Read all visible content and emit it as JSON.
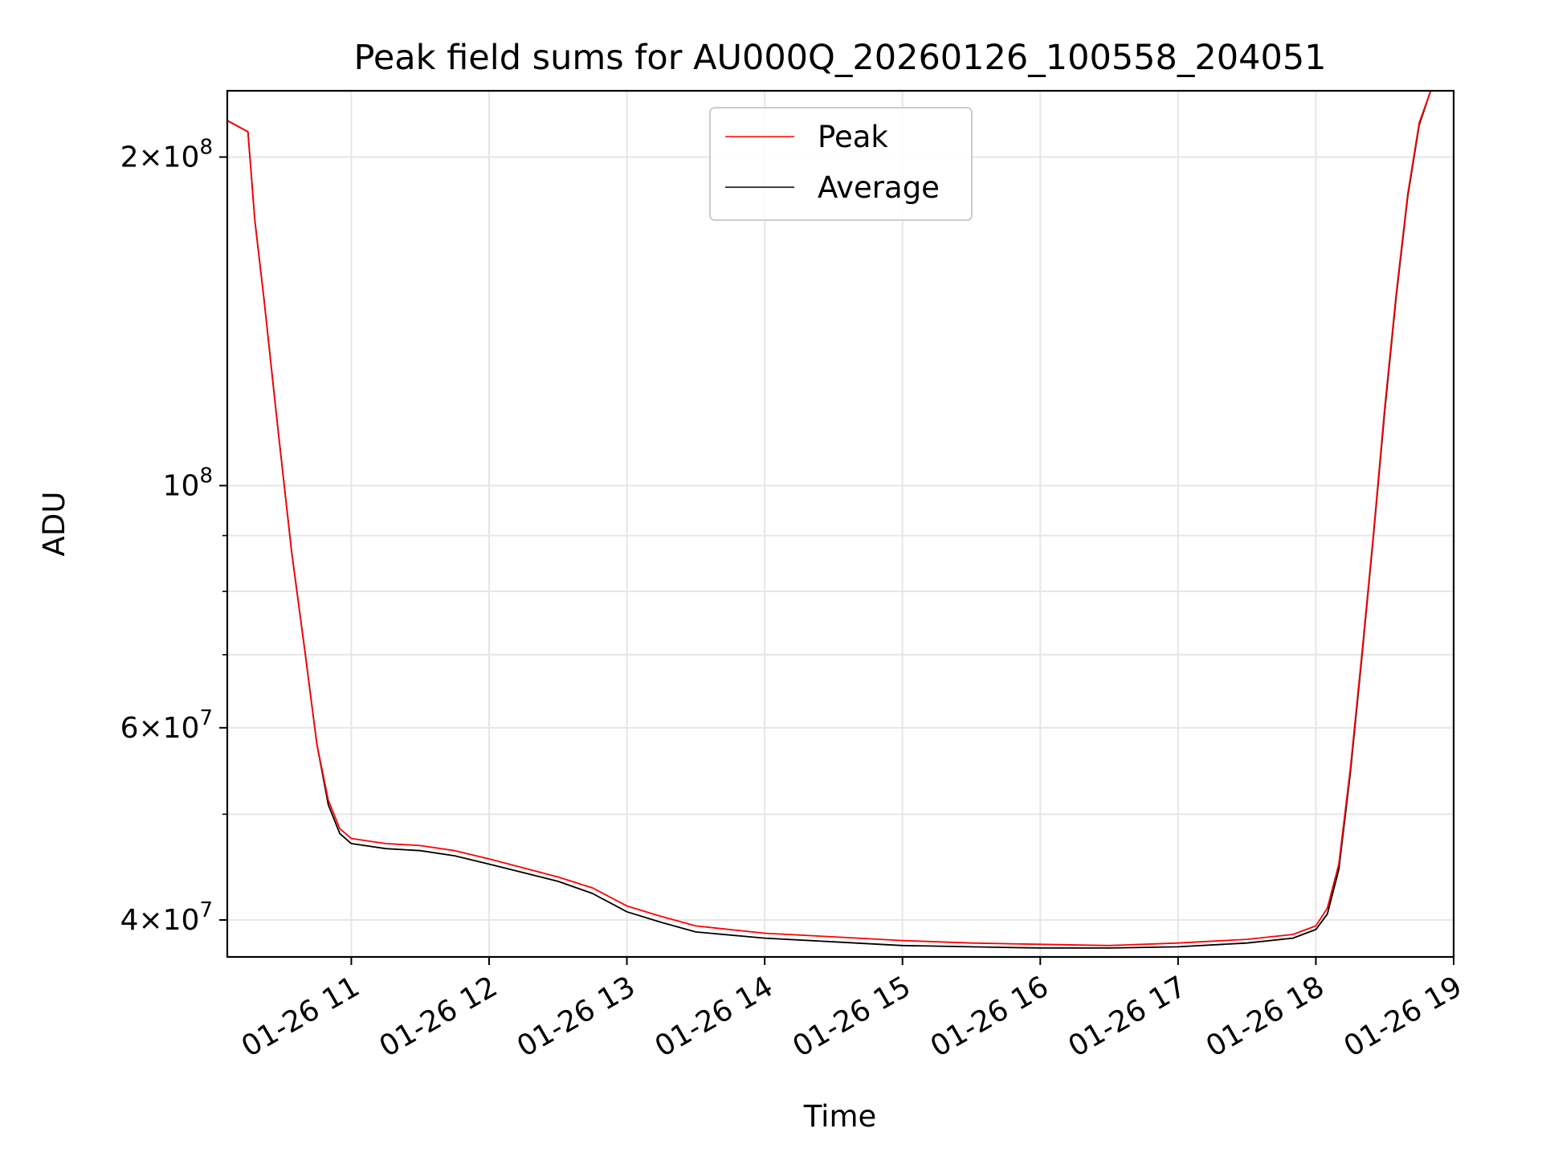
{
  "chart_data": {
    "type": "line",
    "title": "Peak field sums for AU000Q_20260126_100558_204051",
    "xlabel": "Time",
    "ylabel": "ADU",
    "xlim": [
      "2026-01-26 10:06",
      "2026-01-26 19:00"
    ],
    "ylim": [
      37000000,
      230000000
    ],
    "yscale": "log",
    "grid": true,
    "legend_position": "upper center",
    "x_ticks": [
      {
        "value": "2026-01-26 11:00",
        "label": "01-26 11"
      },
      {
        "value": "2026-01-26 12:00",
        "label": "01-26 12"
      },
      {
        "value": "2026-01-26 13:00",
        "label": "01-26 13"
      },
      {
        "value": "2026-01-26 14:00",
        "label": "01-26 14"
      },
      {
        "value": "2026-01-26 15:00",
        "label": "01-26 15"
      },
      {
        "value": "2026-01-26 16:00",
        "label": "01-26 16"
      },
      {
        "value": "2026-01-26 17:00",
        "label": "01-26 17"
      },
      {
        "value": "2026-01-26 18:00",
        "label": "01-26 18"
      },
      {
        "value": "2026-01-26 19:00",
        "label": "01-26 19"
      }
    ],
    "y_ticks_major": [
      {
        "value": 40000000,
        "mant": "4",
        "exp": "7"
      },
      {
        "value": 60000000,
        "mant": "6",
        "exp": "7"
      },
      {
        "value": 100000000,
        "mant": "",
        "exp": "8"
      },
      {
        "value": 200000000,
        "mant": "2",
        "exp": "8"
      }
    ],
    "y_ticks_minor": [
      50000000,
      70000000,
      80000000,
      90000000
    ],
    "series": [
      {
        "name": "Peak",
        "color": "#ff0000",
        "x": [
          "2026-01-26 10:06",
          "2026-01-26 10:15",
          "2026-01-26 10:18",
          "2026-01-26 10:22",
          "2026-01-26 10:28",
          "2026-01-26 10:34",
          "2026-01-26 10:40",
          "2026-01-26 10:45",
          "2026-01-26 10:50",
          "2026-01-26 10:55",
          "2026-01-26 11:00",
          "2026-01-26 11:15",
          "2026-01-26 11:30",
          "2026-01-26 11:45",
          "2026-01-26 12:00",
          "2026-01-26 12:30",
          "2026-01-26 12:45",
          "2026-01-26 13:00",
          "2026-01-26 13:15",
          "2026-01-26 13:30",
          "2026-01-26 14:00",
          "2026-01-26 14:30",
          "2026-01-26 15:00",
          "2026-01-26 15:30",
          "2026-01-26 16:00",
          "2026-01-26 16:30",
          "2026-01-26 17:00",
          "2026-01-26 17:30",
          "2026-01-26 17:50",
          "2026-01-26 18:00",
          "2026-01-26 18:05",
          "2026-01-26 18:10",
          "2026-01-26 18:15",
          "2026-01-26 18:20",
          "2026-01-26 18:25",
          "2026-01-26 18:30",
          "2026-01-26 18:35",
          "2026-01-26 18:40",
          "2026-01-26 18:45",
          "2026-01-26 18:50"
        ],
        "values": [
          216000000,
          211000000,
          175000000,
          148000000,
          113000000,
          87000000,
          70000000,
          58000000,
          51500000,
          48500000,
          47500000,
          47000000,
          46800000,
          46300000,
          45500000,
          43800000,
          42800000,
          41200000,
          40300000,
          39500000,
          38900000,
          38600000,
          38300000,
          38100000,
          38000000,
          37900000,
          38100000,
          38400000,
          38800000,
          39500000,
          41000000,
          45000000,
          55000000,
          70000000,
          90000000,
          118000000,
          150000000,
          185000000,
          215000000,
          230000000
        ]
      },
      {
        "name": "Average",
        "color": "#000000",
        "x": [
          "2026-01-26 10:06",
          "2026-01-26 10:15",
          "2026-01-26 10:18",
          "2026-01-26 10:22",
          "2026-01-26 10:28",
          "2026-01-26 10:34",
          "2026-01-26 10:40",
          "2026-01-26 10:45",
          "2026-01-26 10:50",
          "2026-01-26 10:55",
          "2026-01-26 11:00",
          "2026-01-26 11:15",
          "2026-01-26 11:30",
          "2026-01-26 11:45",
          "2026-01-26 12:00",
          "2026-01-26 12:30",
          "2026-01-26 12:45",
          "2026-01-26 13:00",
          "2026-01-26 13:15",
          "2026-01-26 13:30",
          "2026-01-26 14:00",
          "2026-01-26 14:30",
          "2026-01-26 15:00",
          "2026-01-26 15:30",
          "2026-01-26 16:00",
          "2026-01-26 16:30",
          "2026-01-26 17:00",
          "2026-01-26 17:30",
          "2026-01-26 17:50",
          "2026-01-26 18:00",
          "2026-01-26 18:05",
          "2026-01-26 18:10",
          "2026-01-26 18:15",
          "2026-01-26 18:20",
          "2026-01-26 18:25",
          "2026-01-26 18:30",
          "2026-01-26 18:35",
          "2026-01-26 18:40",
          "2026-01-26 18:45",
          "2026-01-26 18:50"
        ],
        "values": [
          216000000,
          211000000,
          175000000,
          148000000,
          113000000,
          87000000,
          70000000,
          58000000,
          51000000,
          48000000,
          47000000,
          46500000,
          46300000,
          45800000,
          45000000,
          43400000,
          42300000,
          40700000,
          39800000,
          39000000,
          38500000,
          38200000,
          37900000,
          37800000,
          37700000,
          37700000,
          37800000,
          38100000,
          38500000,
          39200000,
          40500000,
          44500000,
          54500000,
          69500000,
          89500000,
          117000000,
          149000000,
          184000000,
          214000000,
          230000000
        ]
      }
    ]
  }
}
